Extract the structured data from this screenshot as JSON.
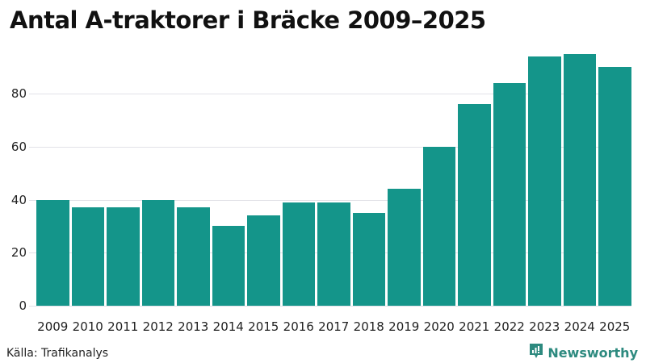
{
  "title": "Antal A-traktorer i Bräcke 2009–2025",
  "source": "Källa: Trafikanalys",
  "brand": "Newsworthy",
  "colors": {
    "bar": "#14958a",
    "grid": "#e2e2e8",
    "brand": "#2d8a7f"
  },
  "y_ticks": [
    "0",
    "20",
    "40",
    "60",
    "80"
  ],
  "chart_data": {
    "type": "bar",
    "title": "Antal A-traktorer i Bräcke 2009–2025",
    "xlabel": "",
    "ylabel": "",
    "categories": [
      "2009",
      "2010",
      "2011",
      "2012",
      "2013",
      "2014",
      "2015",
      "2016",
      "2017",
      "2018",
      "2019",
      "2020",
      "2021",
      "2022",
      "2023",
      "2024",
      "2025"
    ],
    "values": [
      40,
      37,
      37,
      40,
      37,
      30,
      34,
      39,
      39,
      35,
      44,
      60,
      76,
      84,
      94,
      95,
      90
    ],
    "ylim": [
      0,
      100
    ],
    "y_ticks": [
      0,
      20,
      40,
      60,
      80
    ],
    "grid": true,
    "legend": null,
    "source": "Källa: Trafikanalys"
  }
}
